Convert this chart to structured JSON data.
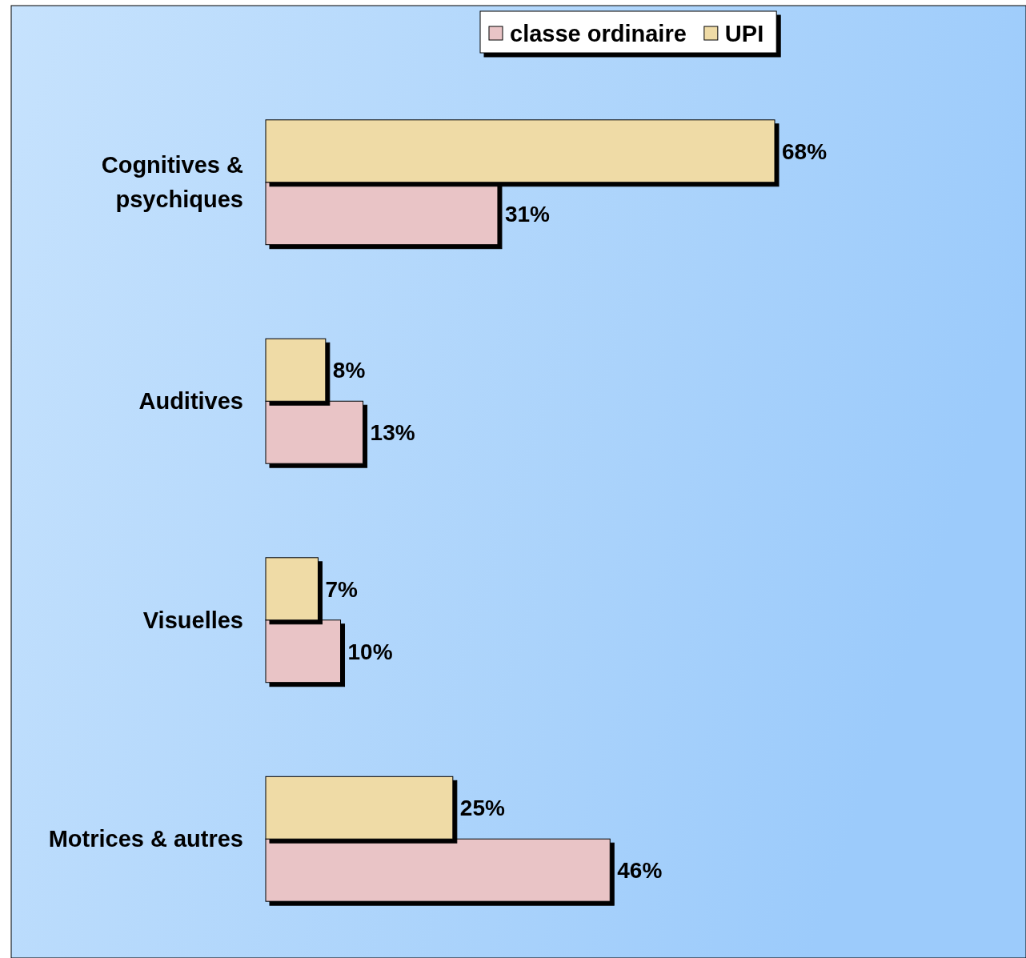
{
  "chart_data": {
    "type": "bar",
    "orientation": "horizontal",
    "relative": false,
    "categories": [
      "Cognitives & psychiques",
      "Auditives",
      "Visuelles",
      "Motrices & autres"
    ],
    "series": [
      {
        "name": "classe ordinaire",
        "color": "#e9c4c6",
        "values": [
          31,
          13,
          10,
          46
        ],
        "value_labels": [
          "31%",
          "13%",
          "10%",
          "46%"
        ]
      },
      {
        "name": "UPI",
        "color": "#efdba6",
        "values": [
          68,
          8,
          7,
          25
        ],
        "value_labels": [
          "68%",
          "8%",
          "7%",
          "25%"
        ]
      }
    ],
    "legend": "top",
    "tick_labels": "y"
  }
}
